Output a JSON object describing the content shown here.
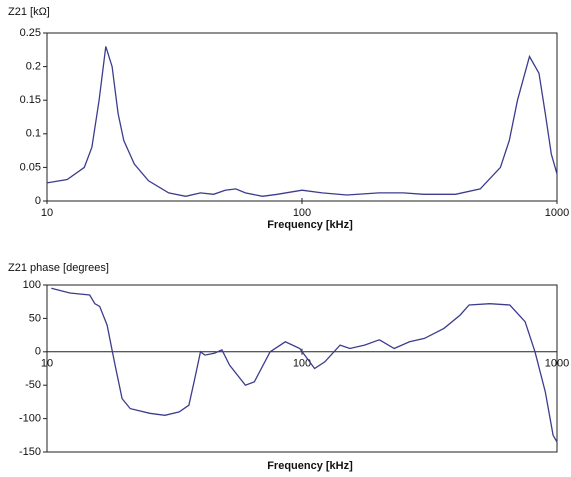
{
  "chart_data": [
    {
      "type": "line",
      "title": "Z21 [kΩ]",
      "x_label": "Frequency [kHz]",
      "xscale": "log",
      "x": [
        10,
        12,
        14,
        15,
        16,
        17,
        18,
        19,
        20,
        22,
        25,
        30,
        35,
        40,
        45,
        50,
        55,
        60,
        70,
        80,
        100,
        120,
        150,
        200,
        250,
        300,
        400,
        500,
        600,
        650,
        700,
        780,
        850,
        900,
        950,
        1000
      ],
      "series": [
        {
          "color": "#3c3c8e",
          "values": [
            0.027,
            0.032,
            0.05,
            0.08,
            0.15,
            0.23,
            0.2,
            0.13,
            0.09,
            0.055,
            0.03,
            0.012,
            0.007,
            0.012,
            0.01,
            0.016,
            0.018,
            0.012,
            0.007,
            0.01,
            0.016,
            0.012,
            0.009,
            0.012,
            0.012,
            0.01,
            0.01,
            0.018,
            0.05,
            0.09,
            0.15,
            0.215,
            0.19,
            0.13,
            0.07,
            0.04
          ]
        }
      ],
      "xlim": [
        10,
        1000
      ],
      "xticks": [
        10,
        100,
        1000
      ],
      "ylim": [
        0,
        0.25
      ],
      "yticks": [
        0,
        0.05,
        0.1,
        0.15,
        0.2,
        0.25
      ],
      "xaxis_crosses_zero": false
    },
    {
      "type": "line",
      "title": "Z21 phase [degrees]",
      "x_label": "Frequency [kHz]",
      "xscale": "log",
      "x": [
        10.4,
        12.3,
        14.7,
        15.4,
        16.1,
        17.2,
        18.5,
        19.7,
        21.2,
        25.3,
        29,
        33,
        36,
        38,
        40,
        41.6,
        45.5,
        48.5,
        52,
        60,
        65,
        75,
        86,
        98,
        112,
        123,
        141,
        154,
        176,
        201,
        230,
        264,
        302,
        360,
        417,
        452,
        545,
        653,
        750,
        820,
        900,
        965,
        1000
      ],
      "series": [
        {
          "color": "#3c3c8e",
          "values": [
            95,
            88,
            85,
            72,
            68,
            40,
            -20,
            -70,
            -85,
            -92,
            -95,
            -90,
            -80,
            -40,
            0,
            -5,
            -2,
            3,
            -20,
            -50,
            -45,
            0,
            15,
            5,
            -25,
            -15,
            10,
            5,
            10,
            18,
            5,
            15,
            20,
            35,
            55,
            70,
            72,
            70,
            45,
            0,
            -60,
            -125,
            -135
          ]
        }
      ],
      "xlim": [
        10,
        1000
      ],
      "xticks": [
        10,
        100,
        1000
      ],
      "ylim": [
        -150,
        100
      ],
      "yticks": [
        -150,
        -100,
        -50,
        0,
        50,
        100
      ],
      "xaxis_crosses_zero": true
    }
  ]
}
